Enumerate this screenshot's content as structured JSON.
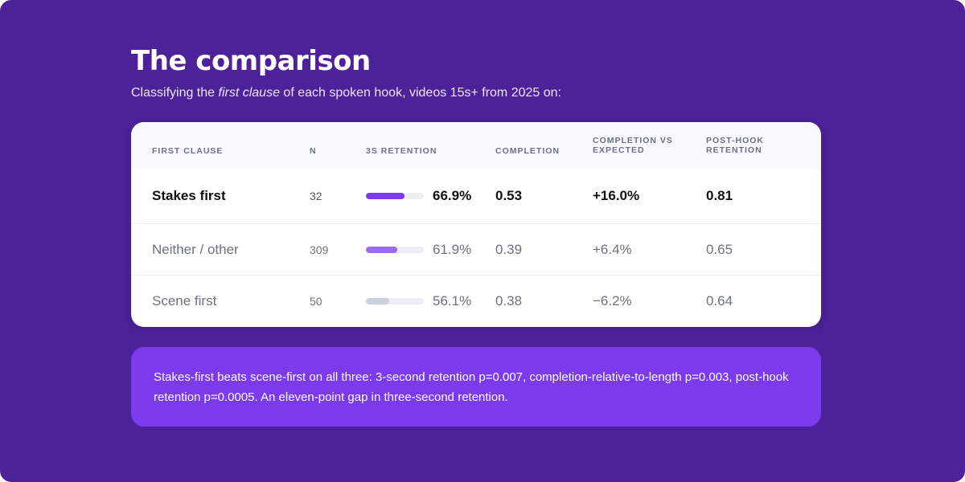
{
  "heading": {
    "title": "The comparison",
    "subtitle_before": "Classifying the ",
    "subtitle_emphasis": "first clause",
    "subtitle_after": " of each spoken hook, videos 15s+ from 2025 on:"
  },
  "table": {
    "columns": {
      "first_clause": "FIRST CLAUSE",
      "n": "N",
      "retention_3s": "3S RETENTION",
      "completion": "COMPLETION",
      "completion_vs_expected_1": "COMPLETION VS",
      "completion_vs_expected_2": "EXPECTED",
      "post_hook_1": "POST-HOOK",
      "post_hook_2": "RETENTION"
    },
    "rows": [
      {
        "label": "Stakes first",
        "n": "32",
        "retention": "66.9%",
        "retention_fraction": 0.669,
        "completion": "0.53",
        "completion_vs_expected": "+16.0%",
        "post_hook_retention": "0.81",
        "bar_color": "#7c3aed"
      },
      {
        "label": "Neither / other",
        "n": "309",
        "retention": "61.9%",
        "retention_fraction": 0.619,
        "completion": "0.39",
        "completion_vs_expected": "+6.4%",
        "post_hook_retention": "0.65",
        "bar_color": "#9b6bf0"
      },
      {
        "label": "Scene first",
        "n": "50",
        "retention": "56.1%",
        "retention_fraction": 0.561,
        "completion": "0.38",
        "completion_vs_expected": "−6.2%",
        "post_hook_retention": "0.64",
        "bar_color": "#cbd2dc"
      }
    ]
  },
  "note": {
    "text": "Stakes-first beats scene-first on all three: 3-second retention p=0.007, completion-relative-to-length p=0.003, post-hook retention p=0.0005. An eleven-point gap in three-second retention."
  },
  "colors": {
    "background": "#4c2199",
    "accent": "#7c3aed",
    "card": "#ffffff"
  }
}
